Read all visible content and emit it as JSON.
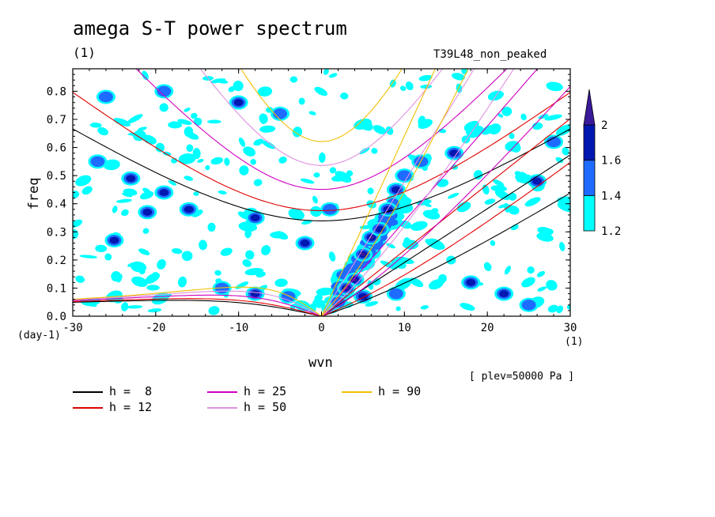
{
  "title": "amega S-T power spectrum",
  "subtitle": "(1)",
  "run_name": "T39L48_non_peaked",
  "plev_note": "[ plev=50000 Pa ]",
  "colors": {
    "h8": "#000000",
    "h12": "#e00000",
    "h25": "#d000c0",
    "h50": "#e090e0",
    "h90": "#f0c000",
    "level_1_2": "#00ffff",
    "level_1_4": "#1e6cff",
    "level_1_6": "#0018b0",
    "level_2": "#3a1a9a"
  },
  "chart_data": {
    "type": "heatmap",
    "title": "amega S-T power spectrum",
    "xlabel": "wvn",
    "ylabel": "freq",
    "x_unit": "(1)",
    "y_unit": "(day-1)",
    "xlim": [
      -30,
      30
    ],
    "ylim": [
      0,
      0.88
    ],
    "x_ticks": [
      "-30",
      "-20",
      "-10",
      "0",
      "10",
      "20",
      "30"
    ],
    "y_ticks": [
      "0.0",
      "0.1",
      "0.2",
      "0.3",
      "0.4",
      "0.5",
      "0.6",
      "0.7",
      "0.8"
    ],
    "colorbar": {
      "levels": [
        "1.2",
        "1.4",
        "1.6",
        "2"
      ],
      "colors": [
        "#00ffff",
        "#1e6cff",
        "#0018b0",
        "#3a1a9a"
      ]
    },
    "dispersion_curves": [
      {
        "name": "h =  8",
        "h": 8,
        "color": "#000000"
      },
      {
        "name": "h = 12",
        "h": 12,
        "color": "#e00000"
      },
      {
        "name": "h = 25",
        "h": 25,
        "color": "#d000c0"
      },
      {
        "name": "h = 50",
        "h": 50,
        "color": "#e090e0"
      },
      {
        "name": "h = 90",
        "h": 90,
        "color": "#f0c000"
      }
    ],
    "power_blobs": [
      {
        "x": 5,
        "y": 0.22,
        "level": 2
      },
      {
        "x": 4,
        "y": 0.13,
        "level": 2
      },
      {
        "x": 6,
        "y": 0.28,
        "level": 2
      },
      {
        "x": 3,
        "y": 0.1,
        "level": 2
      },
      {
        "x": 7,
        "y": 0.31,
        "level": 1.6
      },
      {
        "x": 8,
        "y": 0.38,
        "level": 1.6
      },
      {
        "x": 9,
        "y": 0.45,
        "level": 1.6
      },
      {
        "x": 5,
        "y": 0.07,
        "level": 1.6
      },
      {
        "x": 2,
        "y": 0.05,
        "level": 1.4
      },
      {
        "x": 10,
        "y": 0.5,
        "level": 1.4
      },
      {
        "x": 12,
        "y": 0.55,
        "level": 1.4
      },
      {
        "x": -19,
        "y": 0.44,
        "level": 1.6
      },
      {
        "x": -16,
        "y": 0.38,
        "level": 1.6
      },
      {
        "x": -21,
        "y": 0.37,
        "level": 1.6
      },
      {
        "x": -8,
        "y": 0.35,
        "level": 1.6
      },
      {
        "x": -23,
        "y": 0.49,
        "level": 1.6
      },
      {
        "x": -8,
        "y": 0.08,
        "level": 1.6
      },
      {
        "x": -10,
        "y": 0.76,
        "level": 1.6
      },
      {
        "x": 16,
        "y": 0.58,
        "level": 1.6
      },
      {
        "x": 18,
        "y": 0.12,
        "level": 1.6
      },
      {
        "x": 22,
        "y": 0.08,
        "level": 1.6
      },
      {
        "x": -25,
        "y": 0.27,
        "level": 1.6
      },
      {
        "x": -2,
        "y": 0.26,
        "level": 1.6
      },
      {
        "x": 26,
        "y": 0.48,
        "level": 1.6
      },
      {
        "x": -26,
        "y": 0.78,
        "level": 1.4
      },
      {
        "x": -19,
        "y": 0.8,
        "level": 1.4
      },
      {
        "x": -5,
        "y": 0.72,
        "level": 1.4
      },
      {
        "x": 9,
        "y": 0.08,
        "level": 1.4
      },
      {
        "x": 25,
        "y": 0.04,
        "level": 1.4
      },
      {
        "x": -4,
        "y": 0.07,
        "level": 1.4
      },
      {
        "x": -27,
        "y": 0.55,
        "level": 1.4
      },
      {
        "x": 28,
        "y": 0.62,
        "level": 1.4
      },
      {
        "x": -12,
        "y": 0.1,
        "level": 1.4
      },
      {
        "x": 1,
        "y": 0.38,
        "level": 1.4
      }
    ]
  },
  "legend": [
    {
      "label": "h =  8",
      "color": "#000000"
    },
    {
      "label": "h = 12",
      "color": "#e00000"
    },
    {
      "label": "h = 25",
      "color": "#d000c0"
    },
    {
      "label": "h = 50",
      "color": "#e090e0"
    },
    {
      "label": "h = 90",
      "color": "#f0c000"
    }
  ]
}
